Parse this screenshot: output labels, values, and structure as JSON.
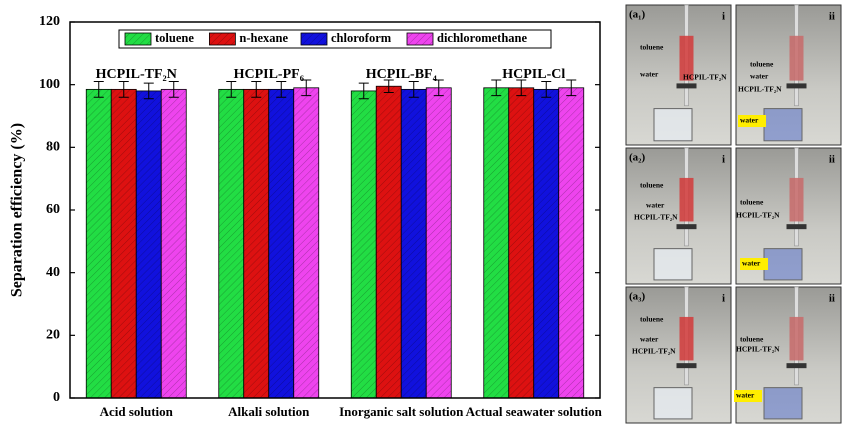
{
  "chart_data": {
    "type": "bar",
    "ylabel": "Separation efficiency (%)",
    "categories": [
      "Acid solution",
      "Alkali solution",
      "Inorganic salt solution",
      "Actual seawater solution"
    ],
    "group_labels": [
      "HCPIL-TF₂N",
      "HCPIL-PF₆",
      "HCPIL-BF₄",
      "HCPIL-Cl"
    ],
    "series": [
      {
        "name": "toluene",
        "color": "#22dd44",
        "values": [
          98.5,
          98.5,
          98,
          99
        ],
        "errors": [
          2.5,
          2.5,
          2.5,
          2.5
        ]
      },
      {
        "name": "n-hexane",
        "color": "#dd1111",
        "values": [
          98.5,
          98.5,
          99.5,
          99
        ],
        "errors": [
          2.5,
          2.5,
          2,
          2.5
        ]
      },
      {
        "name": "chloroform",
        "color": "#1111dd",
        "values": [
          98,
          98.5,
          98.5,
          98.5
        ],
        "errors": [
          2.5,
          2.5,
          2.5,
          2.5
        ]
      },
      {
        "name": "dichloromethane",
        "color": "#ee44ee",
        "values": [
          98.5,
          99,
          99,
          99
        ],
        "errors": [
          2.5,
          2.5,
          2.5,
          2.5
        ]
      }
    ],
    "ylim": [
      0,
      120
    ],
    "yticks": [
      0,
      20,
      40,
      60,
      80,
      100,
      120
    ],
    "legend": "upper center",
    "hatch": true
  },
  "panels": [
    {
      "tag": "(a₁)",
      "step": "i",
      "labels": [
        "toluene",
        "water",
        "HCPIL-TF₂N"
      ]
    },
    {
      "step": "ii",
      "labels": [
        "toluene",
        "water",
        "HCPIL-TF₂N",
        "water"
      ]
    },
    {
      "tag": "(a₂)",
      "step": "i",
      "labels": [
        "toluene",
        "water",
        "HCPIL-TF₂N"
      ]
    },
    {
      "step": "ii",
      "labels": [
        "toluene",
        "HCPIL-TF₂N",
        "water"
      ]
    },
    {
      "tag": "(a₃)",
      "step": "i",
      "labels": [
        "toluene",
        "water",
        "HCPIL-TF₂N"
      ]
    },
    {
      "step": "ii",
      "labels": [
        "toluene",
        "HCPIL-TF₂N",
        "water"
      ]
    }
  ]
}
